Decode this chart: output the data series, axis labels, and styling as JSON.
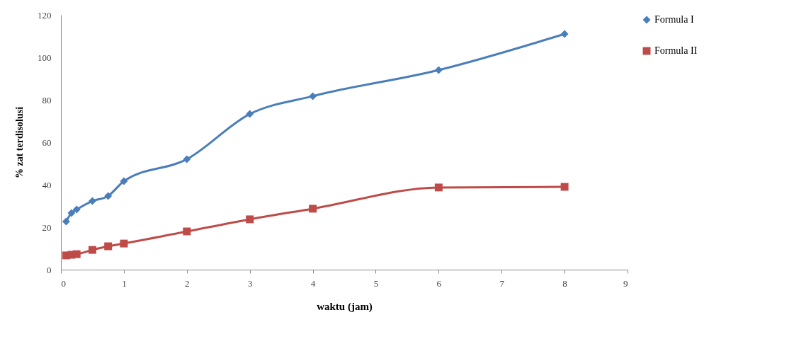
{
  "chart_data": {
    "type": "line",
    "xlabel": "waktu (jam)",
    "ylabel": "% zat terdisolusi",
    "x": [
      0.083,
      0.167,
      0.25,
      0.5,
      0.75,
      1,
      2,
      3,
      4,
      6,
      8
    ],
    "series": [
      {
        "name": "Formula I",
        "color": "#4a7ebb",
        "marker": "diamond",
        "values": [
          22.7,
          26.7,
          28.3,
          32.3,
          34.7,
          41.7,
          52,
          73.3,
          81.7,
          94,
          111
        ]
      },
      {
        "name": "Formula II",
        "color": "#be4b48",
        "marker": "square",
        "values": [
          6.7,
          7,
          7.3,
          9.3,
          11,
          12.3,
          18,
          23.7,
          28.7,
          38.7,
          39
        ]
      }
    ],
    "xlim": [
      0,
      9
    ],
    "xticks": [
      0,
      1,
      2,
      3,
      4,
      5,
      6,
      7,
      8,
      9
    ],
    "ylim": [
      0,
      120
    ],
    "yticks": [
      0,
      20,
      40,
      60,
      80,
      100,
      120
    ],
    "grid": false,
    "legend": "right",
    "line_style": "solid"
  }
}
